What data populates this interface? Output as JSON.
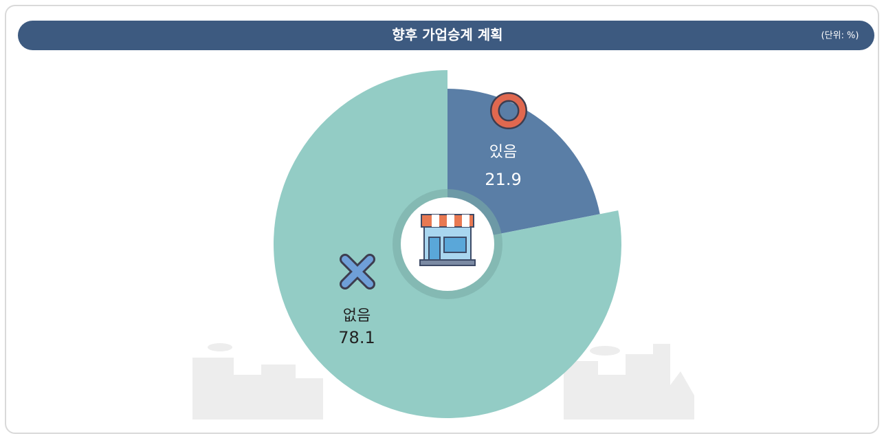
{
  "chart_data": {
    "type": "pie",
    "title": "향후 가업승계 계획",
    "unit": "(단위: %)",
    "categories": [
      "있음",
      "없음"
    ],
    "values": [
      21.9,
      78.1
    ],
    "colors": [
      "#5a7ea6",
      "#93ccc5"
    ]
  }
}
